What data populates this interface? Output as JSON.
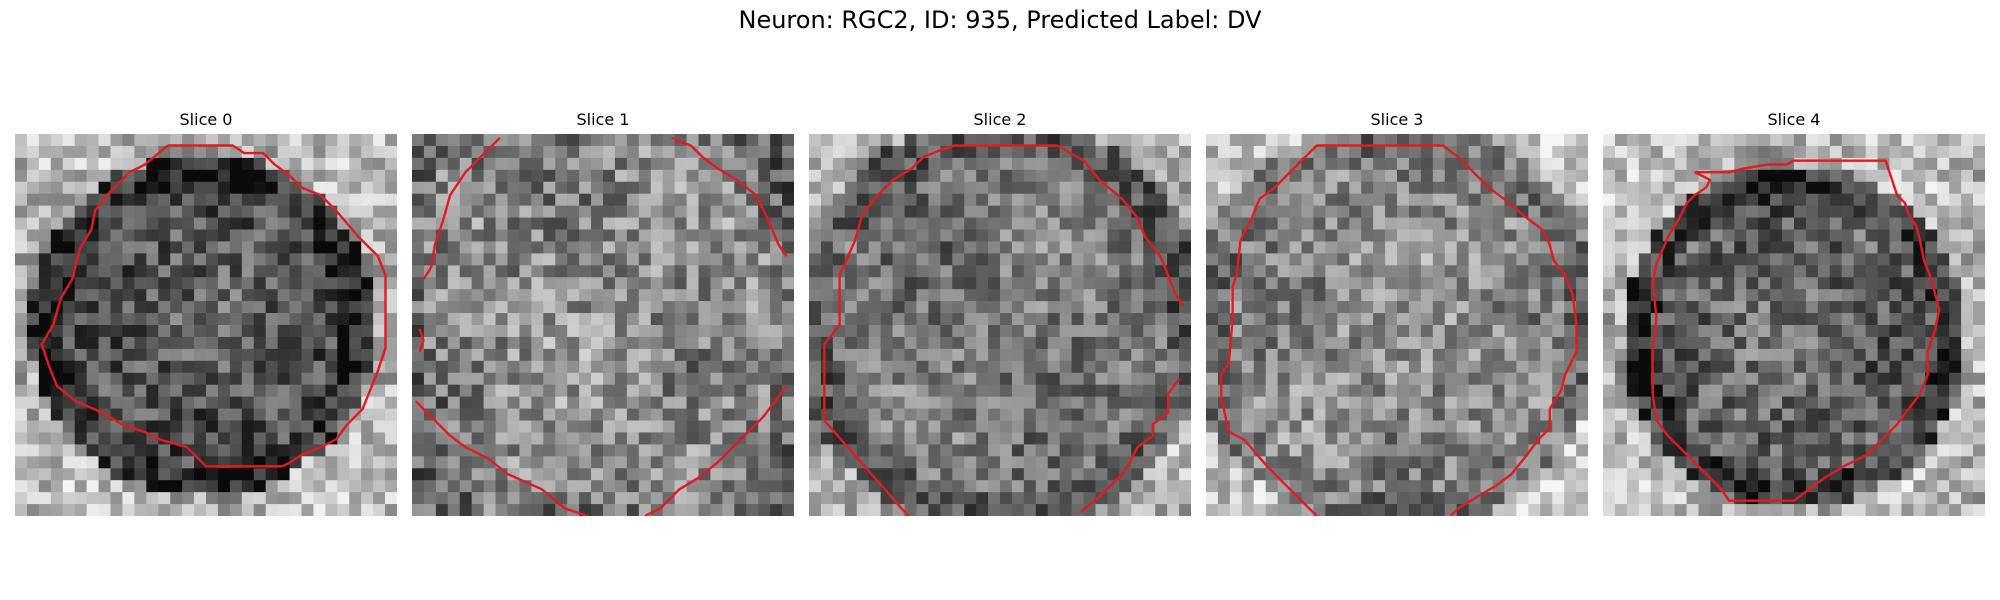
{
  "figure": {
    "title": "Neuron: RGC2, ID: 935, Predicted Label: DV"
  },
  "contour_color": "#e41a1c",
  "panels": [
    {
      "title": "Slice 0",
      "pattern": 0
    },
    {
      "title": "Slice 1",
      "pattern": 1
    },
    {
      "title": "Slice 2",
      "pattern": 2
    },
    {
      "title": "Slice 3",
      "pattern": 3
    },
    {
      "title": "Slice 4",
      "pattern": 4
    }
  ]
}
